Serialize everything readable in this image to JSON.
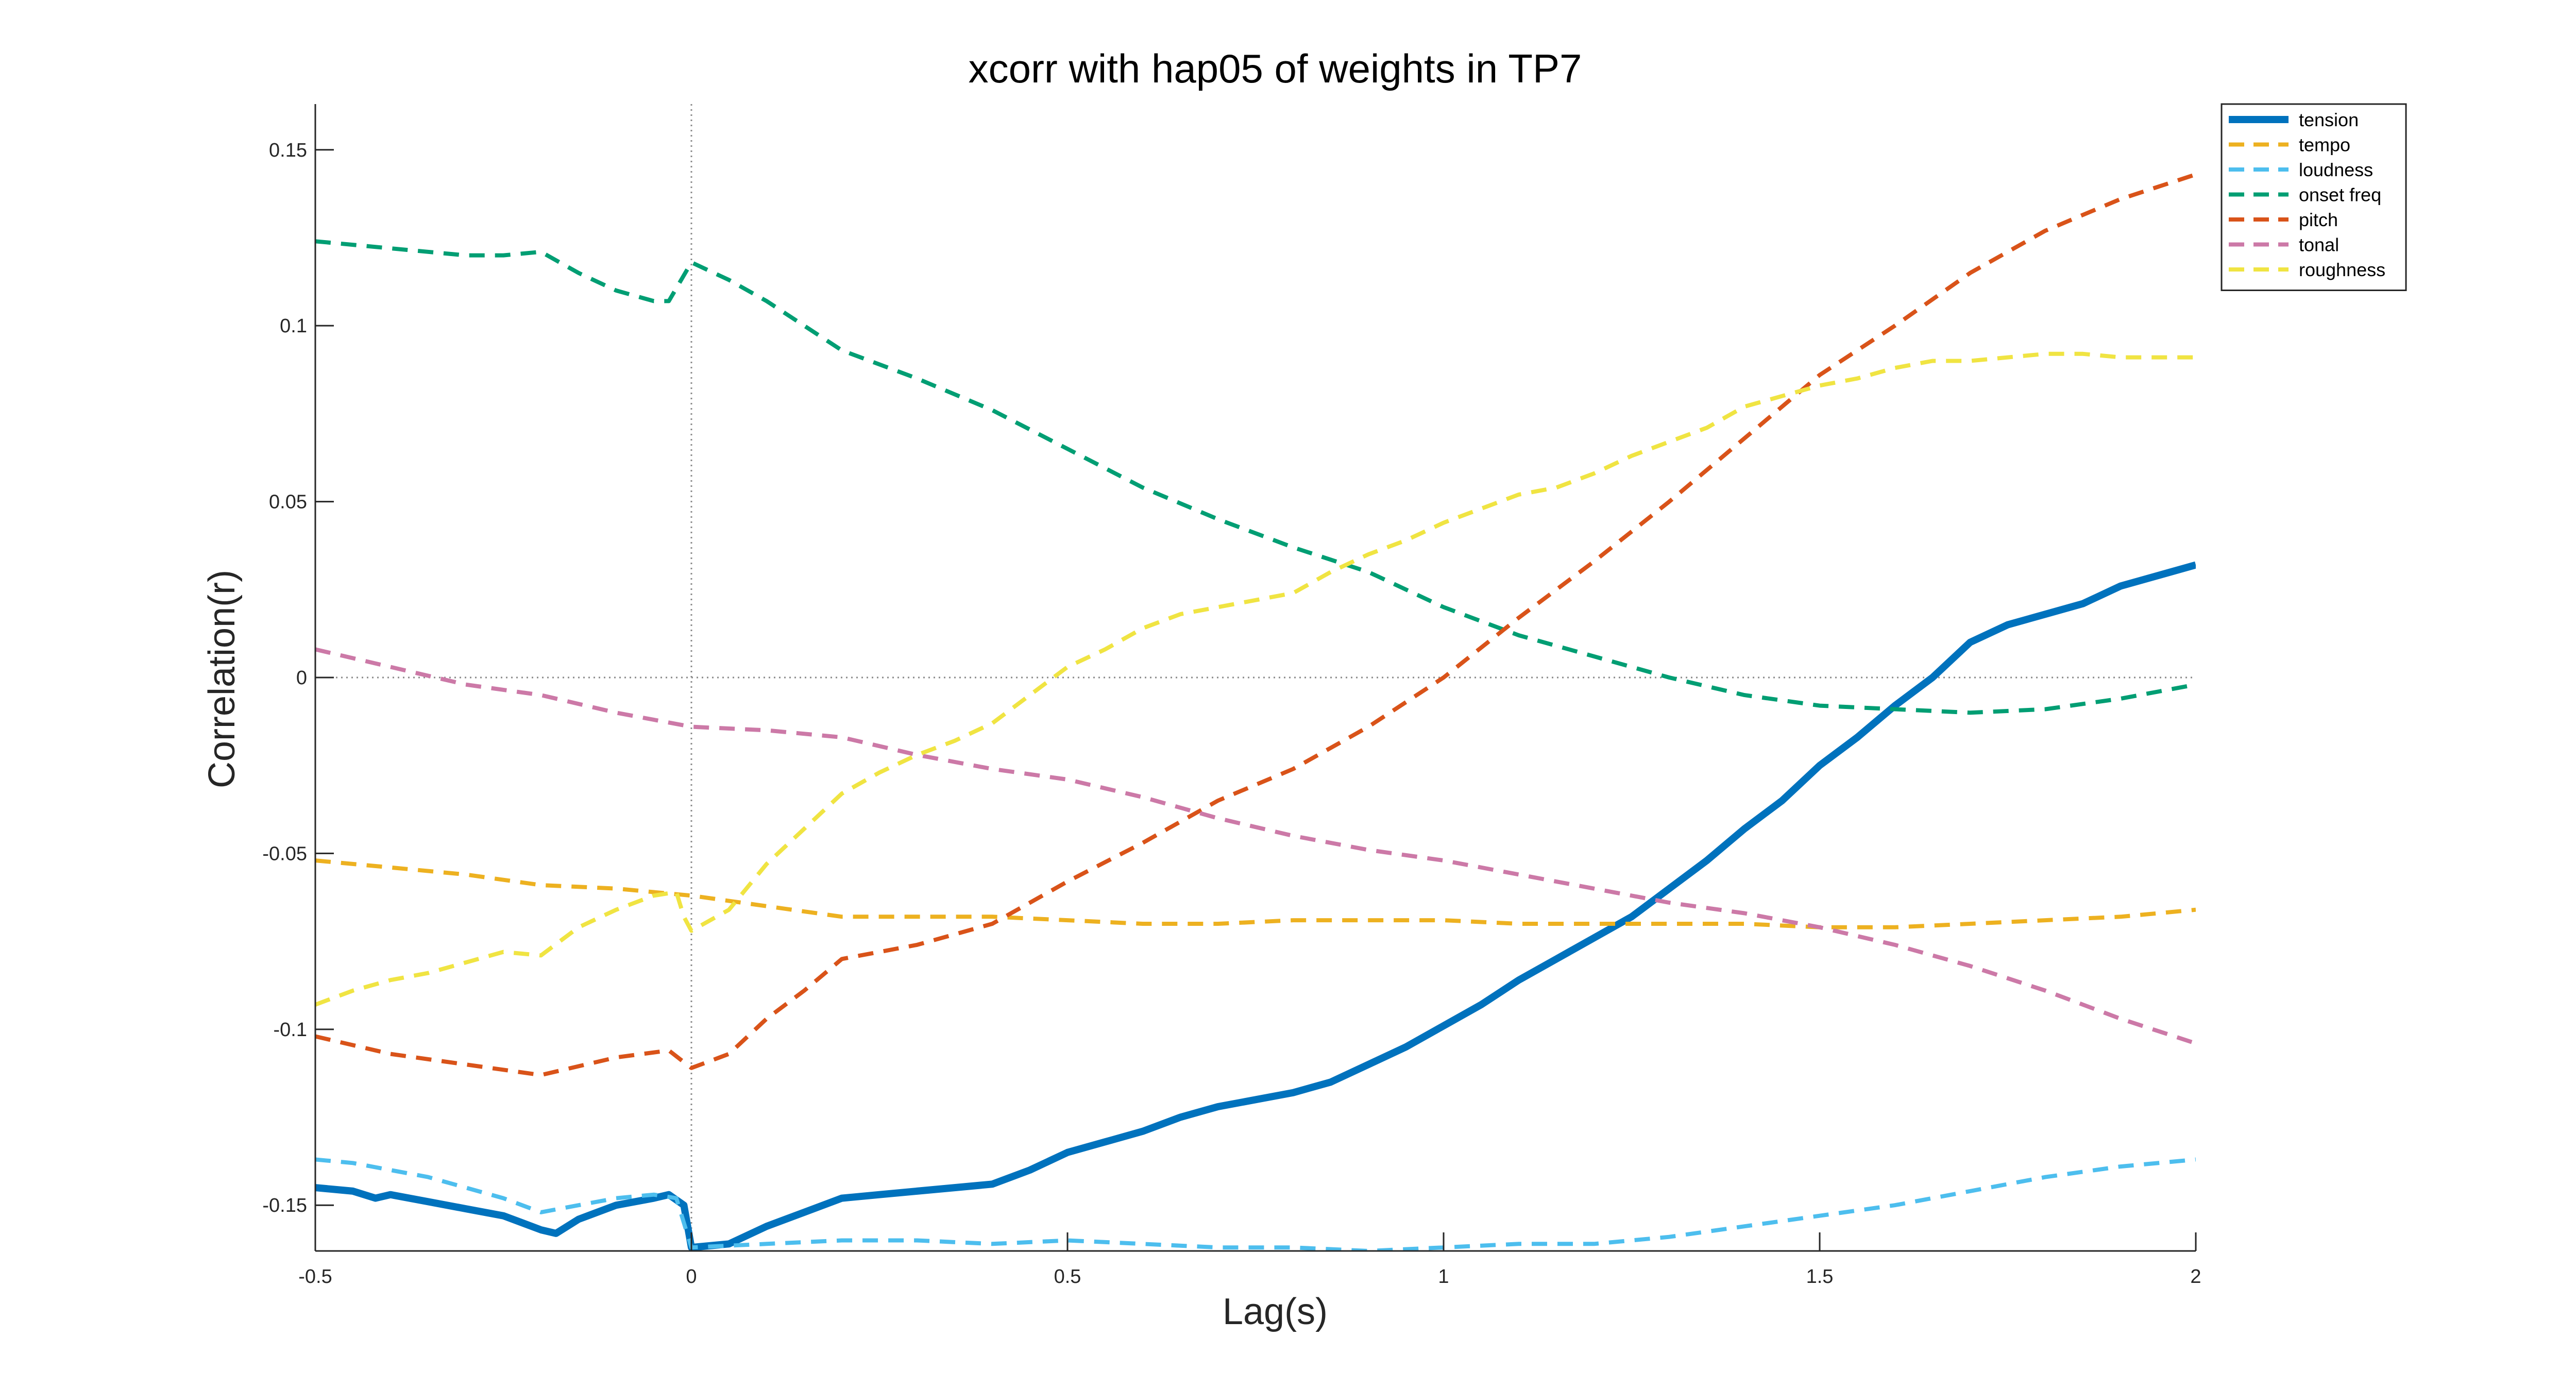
{
  "chart_data": {
    "type": "line",
    "title": "xcorr with hap05 of weights in TP7",
    "xlabel": "Lag(s)",
    "ylabel": "Correlation(r)",
    "xlim": [
      -0.5,
      2
    ],
    "ylim": [
      -0.163,
      0.163
    ],
    "xticks": [
      -0.5,
      0,
      0.5,
      1,
      1.5,
      2
    ],
    "xtick_labels": [
      "-0.5",
      "0",
      "0.5",
      "1",
      "1.5",
      "2"
    ],
    "yticks": [
      -0.15,
      -0.1,
      -0.05,
      0,
      0.05,
      0.1,
      0.15
    ],
    "ytick_labels": [
      "-0.15",
      "-0.1",
      "-0.05",
      "0",
      "0.05",
      "0.1",
      "0.15"
    ],
    "grid": false,
    "reference_lines": {
      "x": 0,
      "y": 0
    },
    "legend_position": "top-right",
    "series": [
      {
        "name": "tension",
        "color": "#0072BD",
        "style": "solid",
        "x": [
          -0.5,
          -0.45,
          -0.42,
          -0.4,
          -0.35,
          -0.3,
          -0.25,
          -0.2,
          -0.18,
          -0.15,
          -0.1,
          -0.05,
          -0.03,
          -0.01,
          0,
          0.05,
          0.1,
          0.15,
          0.2,
          0.25,
          0.3,
          0.35,
          0.4,
          0.45,
          0.5,
          0.55,
          0.6,
          0.65,
          0.7,
          0.75,
          0.8,
          0.85,
          0.9,
          0.95,
          1.0,
          1.05,
          1.1,
          1.15,
          1.2,
          1.25,
          1.3,
          1.35,
          1.4,
          1.45,
          1.5,
          1.55,
          1.6,
          1.65,
          1.7,
          1.75,
          1.8,
          1.85,
          1.9,
          1.95,
          2.0
        ],
        "values": [
          -0.145,
          -0.146,
          -0.148,
          -0.147,
          -0.149,
          -0.151,
          -0.153,
          -0.157,
          -0.158,
          -0.154,
          -0.15,
          -0.148,
          -0.147,
          -0.15,
          -0.162,
          -0.161,
          -0.156,
          -0.152,
          -0.148,
          -0.147,
          -0.146,
          -0.145,
          -0.144,
          -0.14,
          -0.135,
          -0.132,
          -0.129,
          -0.125,
          -0.122,
          -0.12,
          -0.118,
          -0.115,
          -0.11,
          -0.105,
          -0.099,
          -0.093,
          -0.086,
          -0.08,
          -0.074,
          -0.068,
          -0.06,
          -0.052,
          -0.043,
          -0.035,
          -0.025,
          -0.017,
          -0.008,
          0.0,
          0.01,
          0.015,
          0.018,
          0.021,
          0.026,
          0.029,
          0.032
        ]
      },
      {
        "name": "tempo",
        "color": "#EDB120",
        "style": "dashed",
        "x": [
          -0.5,
          -0.4,
          -0.3,
          -0.2,
          -0.1,
          0,
          0.1,
          0.2,
          0.3,
          0.4,
          0.5,
          0.6,
          0.7,
          0.8,
          0.9,
          1.0,
          1.1,
          1.2,
          1.3,
          1.4,
          1.5,
          1.6,
          1.7,
          1.8,
          1.9,
          2.0
        ],
        "values": [
          -0.052,
          -0.054,
          -0.056,
          -0.059,
          -0.06,
          -0.062,
          -0.065,
          -0.068,
          -0.068,
          -0.068,
          -0.069,
          -0.07,
          -0.07,
          -0.069,
          -0.069,
          -0.069,
          -0.07,
          -0.07,
          -0.07,
          -0.07,
          -0.071,
          -0.071,
          -0.07,
          -0.069,
          -0.068,
          -0.066
        ]
      },
      {
        "name": "loudness",
        "color": "#4DBEEE",
        "style": "dashed",
        "x": [
          -0.5,
          -0.45,
          -0.4,
          -0.35,
          -0.3,
          -0.25,
          -0.2,
          -0.15,
          -0.1,
          -0.05,
          -0.02,
          0,
          0.1,
          0.2,
          0.3,
          0.4,
          0.5,
          0.6,
          0.7,
          0.8,
          0.9,
          1.0,
          1.1,
          1.2,
          1.3,
          1.4,
          1.5,
          1.6,
          1.7,
          1.8,
          1.9,
          2.0
        ],
        "values": [
          -0.137,
          -0.138,
          -0.14,
          -0.142,
          -0.145,
          -0.148,
          -0.152,
          -0.15,
          -0.148,
          -0.147,
          -0.148,
          -0.162,
          -0.161,
          -0.16,
          -0.16,
          -0.161,
          -0.16,
          -0.161,
          -0.162,
          -0.162,
          -0.163,
          -0.162,
          -0.161,
          -0.161,
          -0.159,
          -0.156,
          -0.153,
          -0.15,
          -0.146,
          -0.142,
          -0.139,
          -0.137
        ]
      },
      {
        "name": "onset freq",
        "color": "#009E73",
        "style": "dashed",
        "x": [
          -0.5,
          -0.45,
          -0.4,
          -0.35,
          -0.3,
          -0.25,
          -0.2,
          -0.15,
          -0.1,
          -0.05,
          -0.03,
          0,
          0.05,
          0.1,
          0.2,
          0.3,
          0.4,
          0.5,
          0.6,
          0.7,
          0.8,
          0.9,
          1.0,
          1.1,
          1.2,
          1.3,
          1.4,
          1.5,
          1.6,
          1.7,
          1.8,
          1.9,
          2.0
        ],
        "values": [
          0.124,
          0.123,
          0.122,
          0.121,
          0.12,
          0.12,
          0.121,
          0.115,
          0.11,
          0.107,
          0.107,
          0.118,
          0.113,
          0.107,
          0.093,
          0.085,
          0.076,
          0.065,
          0.054,
          0.045,
          0.037,
          0.03,
          0.02,
          0.012,
          0.006,
          0.0,
          -0.005,
          -0.008,
          -0.009,
          -0.01,
          -0.009,
          -0.006,
          -0.002
        ]
      },
      {
        "name": "pitch",
        "color": "#D95319",
        "style": "dashed",
        "x": [
          -0.5,
          -0.4,
          -0.3,
          -0.2,
          -0.1,
          -0.03,
          0,
          0.05,
          0.1,
          0.15,
          0.2,
          0.3,
          0.4,
          0.5,
          0.6,
          0.7,
          0.8,
          0.9,
          1.0,
          1.1,
          1.2,
          1.3,
          1.4,
          1.5,
          1.6,
          1.7,
          1.8,
          1.9,
          2.0
        ],
        "values": [
          -0.102,
          -0.107,
          -0.11,
          -0.113,
          -0.108,
          -0.106,
          -0.111,
          -0.107,
          -0.097,
          -0.089,
          -0.08,
          -0.076,
          -0.07,
          -0.058,
          -0.047,
          -0.035,
          -0.026,
          -0.014,
          0.0,
          0.017,
          0.033,
          0.05,
          0.068,
          0.086,
          0.1,
          0.115,
          0.127,
          0.136,
          0.143
        ]
      },
      {
        "name": "tonal",
        "color": "#CC79A7",
        "style": "dashed",
        "x": [
          -0.5,
          -0.4,
          -0.3,
          -0.2,
          -0.1,
          0,
          0.1,
          0.2,
          0.3,
          0.4,
          0.5,
          0.6,
          0.7,
          0.8,
          0.9,
          1.0,
          1.1,
          1.2,
          1.3,
          1.4,
          1.5,
          1.6,
          1.7,
          1.8,
          1.9,
          2.0
        ],
        "values": [
          0.008,
          0.003,
          -0.002,
          -0.005,
          -0.01,
          -0.014,
          -0.015,
          -0.017,
          -0.022,
          -0.026,
          -0.029,
          -0.034,
          -0.04,
          -0.045,
          -0.049,
          -0.052,
          -0.056,
          -0.06,
          -0.064,
          -0.067,
          -0.071,
          -0.076,
          -0.082,
          -0.089,
          -0.097,
          -0.104
        ]
      },
      {
        "name": "roughness",
        "color": "#F0E442",
        "style": "dashed",
        "x": [
          -0.5,
          -0.45,
          -0.4,
          -0.35,
          -0.3,
          -0.25,
          -0.2,
          -0.15,
          -0.1,
          -0.05,
          -0.02,
          -0.01,
          0,
          0.05,
          0.1,
          0.15,
          0.2,
          0.25,
          0.3,
          0.35,
          0.4,
          0.45,
          0.5,
          0.55,
          0.6,
          0.65,
          0.7,
          0.75,
          0.8,
          0.85,
          0.9,
          0.95,
          1.0,
          1.05,
          1.1,
          1.15,
          1.2,
          1.25,
          1.3,
          1.35,
          1.4,
          1.45,
          1.5,
          1.55,
          1.6,
          1.65,
          1.7,
          1.75,
          1.8,
          1.85,
          1.9,
          1.95,
          2.0
        ],
        "values": [
          -0.093,
          -0.089,
          -0.086,
          -0.084,
          -0.081,
          -0.078,
          -0.079,
          -0.071,
          -0.066,
          -0.062,
          -0.061,
          -0.068,
          -0.072,
          -0.066,
          -0.053,
          -0.043,
          -0.033,
          -0.027,
          -0.022,
          -0.018,
          -0.013,
          -0.005,
          0.003,
          0.008,
          0.014,
          0.018,
          0.02,
          0.022,
          0.024,
          0.03,
          0.035,
          0.039,
          0.044,
          0.048,
          0.052,
          0.054,
          0.058,
          0.063,
          0.067,
          0.071,
          0.077,
          0.08,
          0.083,
          0.085,
          0.088,
          0.09,
          0.09,
          0.091,
          0.092,
          0.092,
          0.091,
          0.091,
          0.091
        ]
      }
    ]
  }
}
